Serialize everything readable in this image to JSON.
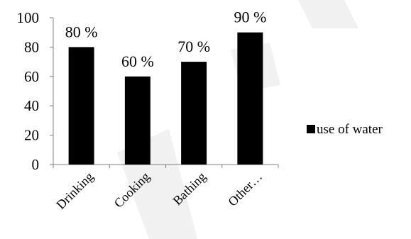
{
  "chart_data": {
    "type": "bar",
    "categories": [
      "Drinking",
      "Cooking",
      "Bathing",
      "Other…"
    ],
    "series": [
      {
        "name": "use of water",
        "values": [
          80,
          60,
          70,
          90
        ]
      }
    ],
    "data_labels": [
      "80 %",
      "60 %",
      "70 %",
      "90 %"
    ],
    "ylim": [
      0,
      100
    ],
    "yticks": [
      0,
      20,
      40,
      60,
      80,
      100
    ],
    "grid": false,
    "legend_position": "right",
    "bar_color": "#000000"
  },
  "legend": {
    "label": "use of water"
  }
}
